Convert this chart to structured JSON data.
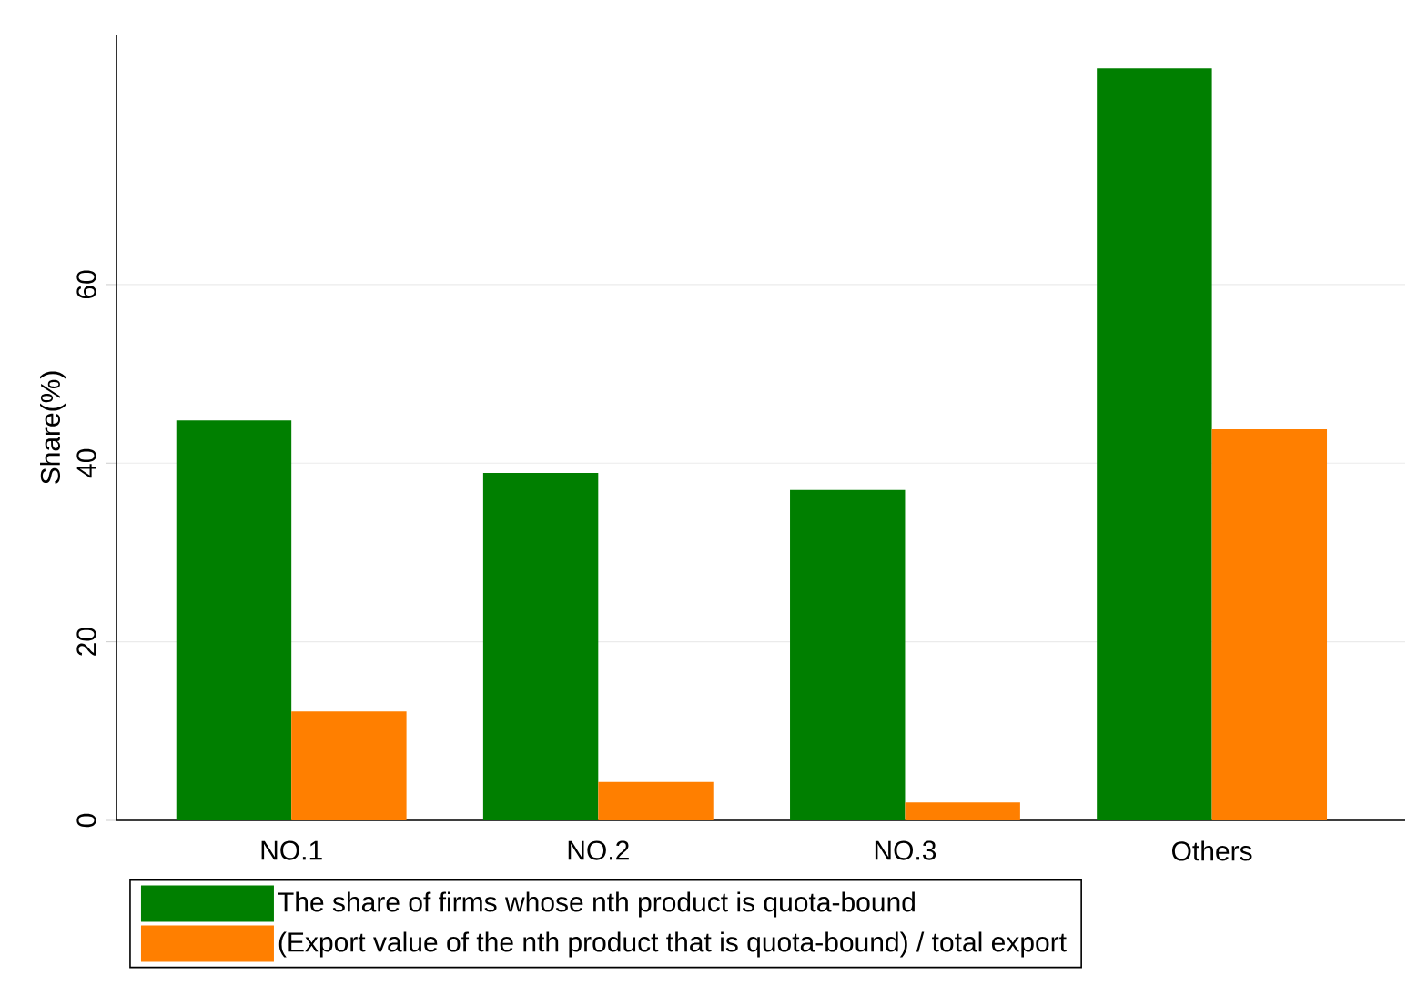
{
  "chart_data": {
    "type": "bar",
    "ylabel": "Share(%)",
    "categories": [
      "NO.1",
      "NO.2",
      "NO.3",
      "Others"
    ],
    "series": [
      {
        "name": "The share of firms whose nth product is quota-bound",
        "color": "#007f00",
        "values": [
          44.8,
          38.9,
          37.0,
          84.2
        ]
      },
      {
        "name": "(Export value of the nth product that is quota-bound) / total export",
        "color": "#ff7f00",
        "values": [
          12.2,
          4.3,
          2.0,
          43.8
        ]
      }
    ],
    "ylim": [
      0,
      88
    ],
    "yticks": [
      0,
      20,
      40,
      60
    ],
    "grid": "y",
    "legend": "bottom"
  }
}
